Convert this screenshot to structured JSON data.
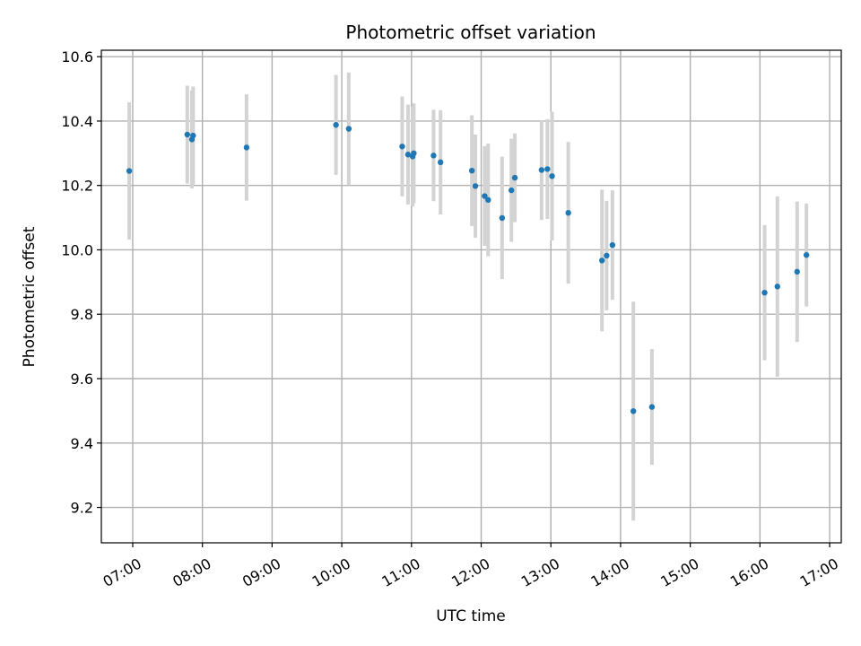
{
  "chart_data": {
    "type": "scatter",
    "title": "Photometric offset variation",
    "xlabel": "UTC time",
    "ylabel": "Photometric offset",
    "xlim": [
      "06:33",
      "17:10"
    ],
    "ylim": [
      9.09,
      10.62
    ],
    "x_ticks": [
      "07:00",
      "08:00",
      "09:00",
      "10:00",
      "11:00",
      "12:00",
      "13:00",
      "14:00",
      "15:00",
      "16:00",
      "17:00"
    ],
    "y_ticks": [
      9.2,
      9.4,
      9.6,
      9.8,
      10.0,
      10.2,
      10.4,
      10.6
    ],
    "y_tick_labels": [
      "9.2",
      "9.4",
      "9.6",
      "9.8",
      "10.0",
      "10.2",
      "10.4",
      "10.6"
    ],
    "grid": true,
    "colors": {
      "point": "#1f77b4",
      "errorbar": "#d3d3d3",
      "grid": "#b0b0b0"
    },
    "points": [
      {
        "time": "06:57",
        "y": 10.245,
        "err": 0.213
      },
      {
        "time": "07:47",
        "y": 10.358,
        "err": 0.152
      },
      {
        "time": "07:51",
        "y": 10.343,
        "err": 0.152
      },
      {
        "time": "07:52",
        "y": 10.355,
        "err": 0.152
      },
      {
        "time": "08:38",
        "y": 10.318,
        "err": 0.165
      },
      {
        "time": "09:55",
        "y": 10.388,
        "err": 0.155
      },
      {
        "time": "10:06",
        "y": 10.376,
        "err": 0.175
      },
      {
        "time": "10:52",
        "y": 10.321,
        "err": 0.155
      },
      {
        "time": "10:57",
        "y": 10.296,
        "err": 0.155
      },
      {
        "time": "11:01",
        "y": 10.29,
        "err": 0.155
      },
      {
        "time": "11:02",
        "y": 10.3,
        "err": 0.155
      },
      {
        "time": "11:19",
        "y": 10.293,
        "err": 0.142
      },
      {
        "time": "11:25",
        "y": 10.272,
        "err": 0.162
      },
      {
        "time": "11:52",
        "y": 10.246,
        "err": 0.172
      },
      {
        "time": "11:55",
        "y": 10.198,
        "err": 0.16
      },
      {
        "time": "12:03",
        "y": 10.167,
        "err": 0.155
      },
      {
        "time": "12:06",
        "y": 10.155,
        "err": 0.175
      },
      {
        "time": "12:18",
        "y": 10.099,
        "err": 0.19
      },
      {
        "time": "12:26",
        "y": 10.185,
        "err": 0.16
      },
      {
        "time": "12:29",
        "y": 10.224,
        "err": 0.138
      },
      {
        "time": "12:52",
        "y": 10.248,
        "err": 0.155
      },
      {
        "time": "12:57",
        "y": 10.251,
        "err": 0.155
      },
      {
        "time": "13:01",
        "y": 10.229,
        "err": 0.2
      },
      {
        "time": "13:15",
        "y": 10.115,
        "err": 0.22
      },
      {
        "time": "13:44",
        "y": 9.967,
        "err": 0.22
      },
      {
        "time": "13:48",
        "y": 9.982,
        "err": 0.17
      },
      {
        "time": "13:53",
        "y": 10.015,
        "err": 0.17
      },
      {
        "time": "14:11",
        "y": 9.499,
        "err": 0.34
      },
      {
        "time": "14:27",
        "y": 9.512,
        "err": 0.18
      },
      {
        "time": "16:04",
        "y": 9.867,
        "err": 0.21
      },
      {
        "time": "16:15",
        "y": 9.886,
        "err": 0.28
      },
      {
        "time": "16:32",
        "y": 9.932,
        "err": 0.218
      },
      {
        "time": "16:40",
        "y": 9.984,
        "err": 0.16
      }
    ]
  }
}
